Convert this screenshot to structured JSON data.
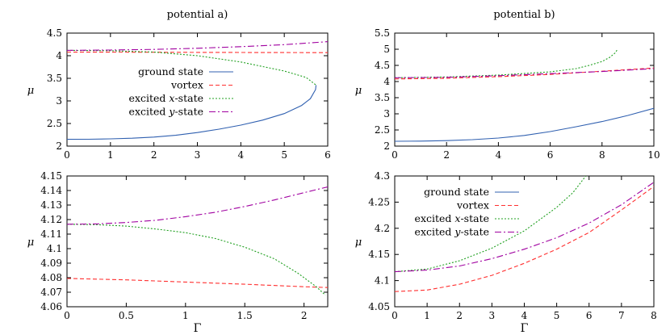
{
  "colors": {
    "ground": "#3060b0",
    "vortex": "#ff3030",
    "xstate": "#20a020",
    "ystate": "#a000a0"
  },
  "chart_data": [
    {
      "id": "a-top",
      "type": "line",
      "title": "potential a)",
      "xlabel": "",
      "ylabel": "μ",
      "xlim": [
        0,
        6
      ],
      "ylim": [
        2,
        4.5
      ],
      "xticks": [
        "0",
        "1",
        "2",
        "3",
        "4",
        "5",
        "6"
      ],
      "yticks": [
        "2",
        "2.5",
        "3",
        "3.5",
        "4",
        "4.5"
      ],
      "legend": {
        "position": "center",
        "entries": [
          {
            "label": "ground state",
            "key": "ground"
          },
          {
            "label": "vortex",
            "key": "vortex"
          },
          {
            "label": "excited x-state",
            "key": "xstate",
            "text_pre": "excited ",
            "text_var": "x",
            "text_post": "-state"
          },
          {
            "label": "excited y-state",
            "key": "ystate",
            "text_pre": "excited ",
            "text_var": "y",
            "text_post": "-state"
          }
        ]
      },
      "series": [
        {
          "name": "ground state",
          "key": "ground",
          "points": [
            [
              0,
              2.15
            ],
            [
              0.5,
              2.152
            ],
            [
              1,
              2.16
            ],
            [
              1.5,
              2.175
            ],
            [
              2,
              2.2
            ],
            [
              2.5,
              2.24
            ],
            [
              3,
              2.3
            ],
            [
              3.5,
              2.375
            ],
            [
              4,
              2.465
            ],
            [
              4.5,
              2.575
            ],
            [
              5,
              2.72
            ],
            [
              5.4,
              2.9
            ],
            [
              5.6,
              3.05
            ],
            [
              5.72,
              3.25
            ],
            [
              5.73,
              3.35
            ]
          ]
        },
        {
          "name": "vortex",
          "key": "vortex",
          "points": [
            [
              0,
              4.08
            ],
            [
              1,
              4.078
            ],
            [
              2,
              4.076
            ],
            [
              3,
              4.074
            ],
            [
              4,
              4.072
            ],
            [
              5,
              4.07
            ],
            [
              6,
              4.068
            ]
          ]
        },
        {
          "name": "excited x-state",
          "key": "xstate",
          "points": [
            [
              0,
              4.117
            ],
            [
              1,
              4.11
            ],
            [
              2,
              4.08
            ],
            [
              3,
              4.0
            ],
            [
              4,
              3.86
            ],
            [
              5,
              3.66
            ],
            [
              5.5,
              3.52
            ],
            [
              5.73,
              3.35
            ]
          ]
        },
        {
          "name": "excited y-state",
          "key": "ystate",
          "points": [
            [
              0,
              4.117
            ],
            [
              1,
              4.125
            ],
            [
              2,
              4.14
            ],
            [
              3,
              4.165
            ],
            [
              4,
              4.2
            ],
            [
              5,
              4.245
            ],
            [
              6,
              4.31
            ]
          ]
        }
      ]
    },
    {
      "id": "b-top",
      "type": "line",
      "title": "potential b)",
      "xlabel": "",
      "ylabel": "μ",
      "xlim": [
        0,
        10
      ],
      "ylim": [
        2,
        5.5
      ],
      "xticks": [
        "0",
        "2",
        "4",
        "6",
        "8",
        "10"
      ],
      "yticks": [
        "2",
        "2.5",
        "3",
        "3.5",
        "4",
        "4.5",
        "5",
        "5.5"
      ],
      "series": [
        {
          "name": "ground state",
          "key": "ground",
          "points": [
            [
              0,
              2.15
            ],
            [
              1,
              2.155
            ],
            [
              2,
              2.17
            ],
            [
              3,
              2.2
            ],
            [
              4,
              2.25
            ],
            [
              5,
              2.33
            ],
            [
              6,
              2.45
            ],
            [
              7,
              2.6
            ],
            [
              8,
              2.76
            ],
            [
              9,
              2.95
            ],
            [
              10,
              3.17
            ]
          ]
        },
        {
          "name": "vortex",
          "key": "vortex",
          "points": [
            [
              0,
              4.08
            ],
            [
              2,
              4.1
            ],
            [
              4,
              4.15
            ],
            [
              6,
              4.22
            ],
            [
              8,
              4.32
            ],
            [
              10,
              4.42
            ]
          ]
        },
        {
          "name": "excited x-state",
          "key": "xstate",
          "points": [
            [
              0,
              4.117
            ],
            [
              2,
              4.14
            ],
            [
              4,
              4.2
            ],
            [
              6,
              4.3
            ],
            [
              7,
              4.4
            ],
            [
              7.5,
              4.5
            ],
            [
              8,
              4.62
            ],
            [
              8.3,
              4.75
            ],
            [
              8.5,
              4.88
            ],
            [
              8.6,
              5.0
            ]
          ]
        },
        {
          "name": "excited y-state",
          "key": "ystate",
          "points": [
            [
              0,
              4.117
            ],
            [
              2,
              4.13
            ],
            [
              4,
              4.18
            ],
            [
              6,
              4.245
            ],
            [
              8,
              4.31
            ],
            [
              10,
              4.4
            ]
          ]
        }
      ]
    },
    {
      "id": "a-bottom",
      "type": "line",
      "title": "",
      "xlabel": "Γ",
      "ylabel": "μ",
      "xlim": [
        0,
        2.2
      ],
      "ylim": [
        4.06,
        4.15
      ],
      "xticks": [
        "0",
        "0.5",
        "1",
        "1.5",
        "2"
      ],
      "yticks": [
        "4.06",
        "4.07",
        "4.08",
        "4.09",
        "4.1",
        "4.11",
        "4.12",
        "4.13",
        "4.14",
        "4.15"
      ],
      "series": [
        {
          "name": "vortex",
          "key": "vortex",
          "points": [
            [
              0,
              4.0795
            ],
            [
              0.5,
              4.0785
            ],
            [
              1,
              4.077
            ],
            [
              1.5,
              4.0755
            ],
            [
              2,
              4.0738
            ],
            [
              2.2,
              4.0732
            ]
          ]
        },
        {
          "name": "excited x-state",
          "key": "xstate",
          "points": [
            [
              0,
              4.1168
            ],
            [
              0.25,
              4.1165
            ],
            [
              0.5,
              4.1155
            ],
            [
              0.75,
              4.1135
            ],
            [
              1,
              4.111
            ],
            [
              1.25,
              4.107
            ],
            [
              1.5,
              4.101
            ],
            [
              1.75,
              4.093
            ],
            [
              1.95,
              4.083
            ],
            [
              2.1,
              4.074
            ],
            [
              2.18,
              4.068
            ]
          ]
        },
        {
          "name": "excited y-state",
          "key": "ystate",
          "points": [
            [
              0,
              4.1168
            ],
            [
              0.25,
              4.117
            ],
            [
              0.5,
              4.118
            ],
            [
              0.75,
              4.1195
            ],
            [
              1,
              4.122
            ],
            [
              1.25,
              4.125
            ],
            [
              1.5,
              4.129
            ],
            [
              1.75,
              4.1335
            ],
            [
              2,
              4.1385
            ],
            [
              2.2,
              4.1425
            ]
          ]
        }
      ]
    },
    {
      "id": "b-bottom",
      "type": "line",
      "title": "",
      "xlabel": "Γ",
      "ylabel": "μ",
      "xlim": [
        0,
        8
      ],
      "ylim": [
        4.05,
        4.3
      ],
      "xticks": [
        "0",
        "1",
        "2",
        "3",
        "4",
        "5",
        "6",
        "7",
        "8"
      ],
      "yticks": [
        "4.05",
        "4.1",
        "4.15",
        "4.2",
        "4.25",
        "4.3"
      ],
      "legend": {
        "position": "top-left",
        "entries": [
          {
            "label": "ground state",
            "key": "ground"
          },
          {
            "label": "vortex",
            "key": "vortex"
          },
          {
            "label": "excited x-state",
            "key": "xstate",
            "text_pre": "excited ",
            "text_var": "x",
            "text_post": "-state"
          },
          {
            "label": "excited y-state",
            "key": "ystate",
            "text_pre": "excited ",
            "text_var": "y",
            "text_post": "-state"
          }
        ]
      },
      "series": [
        {
          "name": "vortex",
          "key": "vortex",
          "points": [
            [
              0,
              4.079
            ],
            [
              1,
              4.082
            ],
            [
              2,
              4.093
            ],
            [
              3,
              4.11
            ],
            [
              4,
              4.133
            ],
            [
              5,
              4.16
            ],
            [
              6,
              4.192
            ],
            [
              7,
              4.235
            ],
            [
              8,
              4.28
            ]
          ]
        },
        {
          "name": "excited x-state",
          "key": "xstate",
          "points": [
            [
              0,
              4.117
            ],
            [
              1,
              4.122
            ],
            [
              2,
              4.138
            ],
            [
              3,
              4.162
            ],
            [
              4,
              4.195
            ],
            [
              5,
              4.24
            ],
            [
              5.5,
              4.268
            ],
            [
              5.9,
              4.3
            ]
          ]
        },
        {
          "name": "excited y-state",
          "key": "ystate",
          "points": [
            [
              0,
              4.117
            ],
            [
              1,
              4.12
            ],
            [
              2,
              4.128
            ],
            [
              3,
              4.142
            ],
            [
              4,
              4.16
            ],
            [
              5,
              4.182
            ],
            [
              6,
              4.21
            ],
            [
              7,
              4.245
            ],
            [
              8,
              4.288
            ]
          ]
        }
      ]
    }
  ]
}
